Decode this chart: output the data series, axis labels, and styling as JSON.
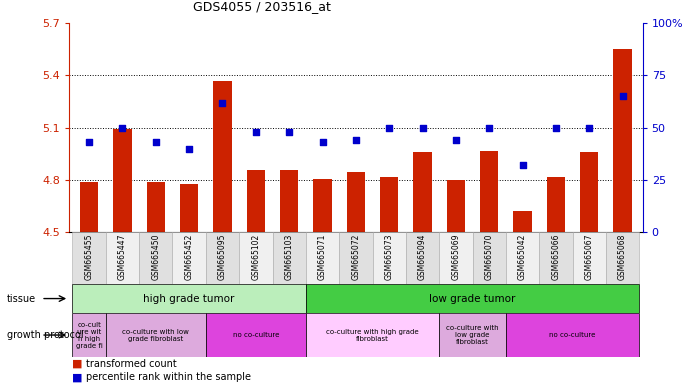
{
  "title": "GDS4055 / 203516_at",
  "samples": [
    "GSM665455",
    "GSM665447",
    "GSM665450",
    "GSM665452",
    "GSM665095",
    "GSM665102",
    "GSM665103",
    "GSM665071",
    "GSM665072",
    "GSM665073",
    "GSM665094",
    "GSM665069",
    "GSM665070",
    "GSM665042",
    "GSM665066",
    "GSM665067",
    "GSM665068"
  ],
  "bar_values": [
    4.79,
    5.095,
    4.79,
    4.775,
    5.37,
    4.855,
    4.855,
    4.805,
    4.845,
    4.82,
    4.96,
    4.8,
    4.965,
    4.62,
    4.82,
    4.96,
    5.55
  ],
  "dot_values": [
    43,
    50,
    43,
    40,
    62,
    48,
    48,
    43,
    44,
    50,
    50,
    44,
    50,
    32,
    50,
    50,
    65
  ],
  "ylim_left": [
    4.5,
    5.7
  ],
  "ylim_right": [
    0,
    100
  ],
  "yticks_left": [
    4.5,
    4.8,
    5.1,
    5.4,
    5.7
  ],
  "yticks_right": [
    0,
    25,
    50,
    75,
    100
  ],
  "ytick_labels_left": [
    "4.5",
    "4.8",
    "5.1",
    "5.4",
    "5.7"
  ],
  "ytick_labels_right": [
    "0",
    "25",
    "50",
    "75",
    "100%"
  ],
  "bar_color": "#cc2200",
  "dot_color": "#0000cc",
  "tissue_data": [
    {
      "label": "high grade tumor",
      "color": "#bbeebb",
      "start": 0,
      "end": 6
    },
    {
      "label": "low grade tumor",
      "color": "#44cc44",
      "start": 7,
      "end": 16
    }
  ],
  "protocol_data": [
    {
      "label": "co-cult\nure wit\nh high\ngrade fi",
      "color": "#ddaadd",
      "start": 0,
      "end": 0
    },
    {
      "label": "co-culture with low\ngrade fibroblast",
      "color": "#ddaadd",
      "start": 1,
      "end": 3
    },
    {
      "label": "no co-culture",
      "color": "#dd44dd",
      "start": 4,
      "end": 6
    },
    {
      "label": "co-culture with high grade\nfibroblast",
      "color": "#ffccff",
      "start": 7,
      "end": 10
    },
    {
      "label": "co-culture with\nlow grade\nfibroblast",
      "color": "#ddaadd",
      "start": 11,
      "end": 12
    },
    {
      "label": "no co-culture",
      "color": "#dd44dd",
      "start": 13,
      "end": 16
    }
  ],
  "legend_red": "transformed count",
  "legend_blue": "percentile rank within the sample"
}
